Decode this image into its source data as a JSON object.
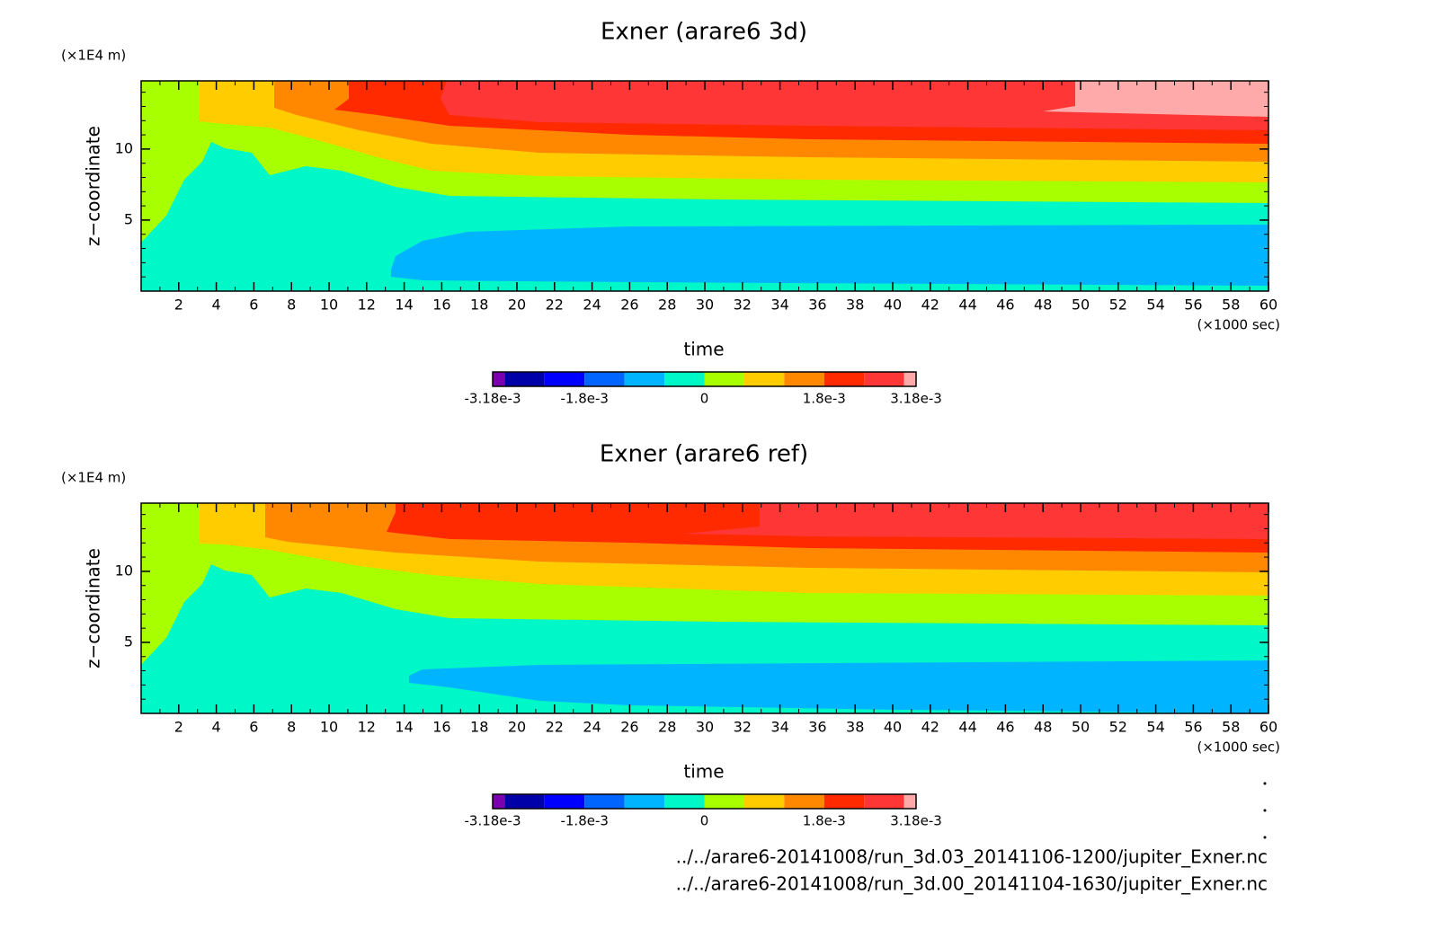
{
  "chart_data": [
    {
      "type": "contour",
      "title": "Exner (arare6 3d)",
      "xlabel": "time",
      "xunit": "(×1000 sec)",
      "ylabel": "z−coordinate",
      "yunit": "(×1E4 m)",
      "xlim": [
        0,
        60
      ],
      "xticks": [
        2,
        4,
        6,
        8,
        10,
        12,
        14,
        16,
        18,
        20,
        22,
        24,
        26,
        28,
        30,
        32,
        34,
        36,
        38,
        40,
        42,
        44,
        46,
        48,
        50,
        52,
        54,
        56,
        58,
        60
      ],
      "ylim": [
        0,
        14.8
      ],
      "yticks": [
        5,
        10
      ],
      "colorbar": {
        "levels": [
          -0.00318,
          -0.003,
          -0.0024,
          -0.0018,
          -0.0012,
          -0.0006,
          0,
          0.0006,
          0.0012,
          0.0018,
          0.0024,
          0.003,
          0.00318
        ],
        "colors": [
          "#7a00b0",
          "#0000a8",
          "#0000ff",
          "#0064ff",
          "#00b4ff",
          "#00f8c8",
          "#a8ff00",
          "#ffcc00",
          "#ff8800",
          "#ff2a00",
          "#ff3636",
          "#ffaaaa"
        ],
        "ticks": [
          {
            "value": -0.00318,
            "label": "-3.18e-3"
          },
          {
            "value": -0.0018,
            "label": "-1.8e-3"
          },
          0,
          {
            "value": 0.0018,
            "label": "1.8e-3"
          },
          {
            "value": 0.00318,
            "label": "3.18e-3"
          }
        ]
      }
    },
    {
      "type": "contour",
      "title": "Exner (arare6 ref)",
      "xlabel": "time",
      "xunit": "(×1000 sec)",
      "ylabel": "z−coordinate",
      "yunit": "(×1E4 m)",
      "xlim": [
        0,
        60
      ],
      "xticks": [
        2,
        4,
        6,
        8,
        10,
        12,
        14,
        16,
        18,
        20,
        22,
        24,
        26,
        28,
        30,
        32,
        34,
        36,
        38,
        40,
        42,
        44,
        46,
        48,
        50,
        52,
        54,
        56,
        58,
        60
      ],
      "ylim": [
        0,
        14.8
      ],
      "yticks": [
        5,
        10
      ],
      "colorbar": {
        "levels": [
          -0.00318,
          -0.003,
          -0.0024,
          -0.0018,
          -0.0012,
          -0.0006,
          0,
          0.0006,
          0.0012,
          0.0018,
          0.0024,
          0.003,
          0.00318
        ],
        "colors": [
          "#7a00b0",
          "#0000a8",
          "#0000ff",
          "#0064ff",
          "#00b4ff",
          "#00f8c8",
          "#a8ff00",
          "#ffcc00",
          "#ff8800",
          "#ff2a00",
          "#ff3636",
          "#ffaaaa"
        ],
        "ticks": [
          {
            "value": -0.00318,
            "label": "-3.18e-3"
          },
          {
            "value": -0.0018,
            "label": "-1.8e-3"
          },
          0,
          {
            "value": 0.0018,
            "label": "1.8e-3"
          },
          {
            "value": 0.00318,
            "label": "3.18e-3"
          }
        ]
      }
    }
  ],
  "files": [
    "../../arare6-20141008/run_3d.03_20141106-1200/jupiter_Exner.nc",
    "../../arare6-20141008/run_3d.00_20141104-1630/jupiter_Exner.nc"
  ]
}
